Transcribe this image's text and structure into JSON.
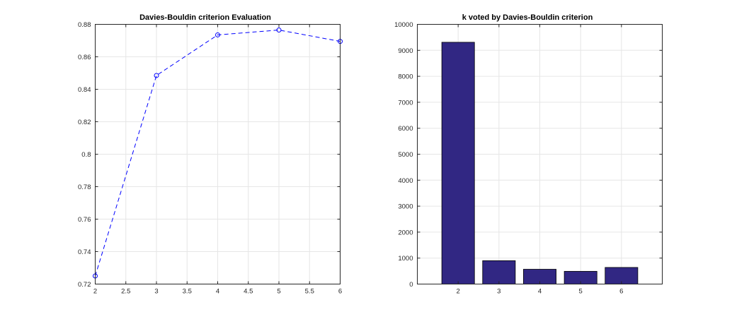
{
  "chart_data": [
    {
      "type": "line",
      "title": "Davies-Bouldin criterion Evaluation",
      "xlabel": "",
      "ylabel": "",
      "x": [
        2,
        3,
        4,
        5,
        6
      ],
      "series": [
        {
          "values": [
            0.725,
            0.8485,
            0.8735,
            0.8765,
            0.8695
          ]
        }
      ],
      "xlim": [
        2,
        6
      ],
      "ylim": [
        0.72,
        0.88
      ],
      "xticks": [
        2,
        2.5,
        3,
        3.5,
        4,
        4.5,
        5,
        5.5,
        6
      ],
      "xtick_labels": [
        "2",
        "2.5",
        "3",
        "3.5",
        "4",
        "4.5",
        "5",
        "5.5",
        "6"
      ],
      "yticks": [
        0.72,
        0.74,
        0.76,
        0.78,
        0.8,
        0.82,
        0.84,
        0.86,
        0.88
      ],
      "ytick_labels": [
        "0.72",
        "0.74",
        "0.76",
        "0.78",
        "0.8",
        "0.82",
        "0.84",
        "0.86",
        "0.88"
      ],
      "line_style": "dashed",
      "marker": "circle",
      "color": "#0000ff",
      "grid": true
    },
    {
      "type": "bar",
      "title": "k voted by Davies-Bouldin criterion",
      "xlabel": "",
      "ylabel": "",
      "categories": [
        "2",
        "3",
        "4",
        "5",
        "6"
      ],
      "values": [
        9310,
        900,
        570,
        490,
        640
      ],
      "xlim": [
        1,
        7
      ],
      "ylim": [
        0,
        10000
      ],
      "yticks": [
        0,
        1000,
        2000,
        3000,
        4000,
        5000,
        6000,
        7000,
        8000,
        9000,
        10000
      ],
      "ytick_labels": [
        "0",
        "1000",
        "2000",
        "3000",
        "4000",
        "5000",
        "6000",
        "7000",
        "8000",
        "9000",
        "10000"
      ],
      "bar_color": "#312783",
      "edge_color": "#000000",
      "grid": true
    }
  ]
}
